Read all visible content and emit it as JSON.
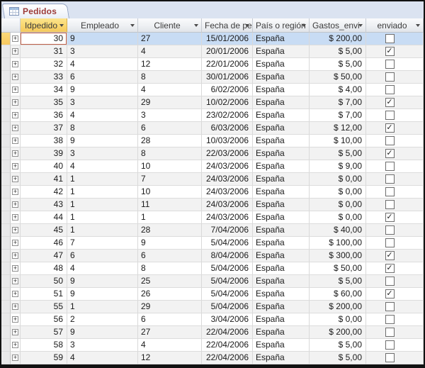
{
  "tab": {
    "title": "Pedidos"
  },
  "table": {
    "columns": [
      {
        "key": "id",
        "label": "Idpedido"
      },
      {
        "key": "empleado",
        "label": "Empleado"
      },
      {
        "key": "cliente",
        "label": "Cliente"
      },
      {
        "key": "fecha",
        "label": "Fecha de pe"
      },
      {
        "key": "pais",
        "label": "País o región"
      },
      {
        "key": "gastos",
        "label": "Gastos_envi"
      },
      {
        "key": "enviado",
        "label": "enviado"
      }
    ],
    "selected_row_id": 30,
    "rows": [
      {
        "id": 30,
        "empleado": 9,
        "cliente": 27,
        "fecha": "15/01/2006",
        "pais": "España",
        "gastos": "$ 200,00",
        "enviado": false,
        "selected": true
      },
      {
        "id": 31,
        "empleado": 3,
        "cliente": 4,
        "fecha": "20/01/2006",
        "pais": "España",
        "gastos": "$ 5,00",
        "enviado": true
      },
      {
        "id": 32,
        "empleado": 4,
        "cliente": 12,
        "fecha": "22/01/2006",
        "pais": "España",
        "gastos": "$ 5,00",
        "enviado": false
      },
      {
        "id": 33,
        "empleado": 6,
        "cliente": 8,
        "fecha": "30/01/2006",
        "pais": "España",
        "gastos": "$ 50,00",
        "enviado": false
      },
      {
        "id": 34,
        "empleado": 9,
        "cliente": 4,
        "fecha": "6/02/2006",
        "pais": "España",
        "gastos": "$ 4,00",
        "enviado": false
      },
      {
        "id": 35,
        "empleado": 3,
        "cliente": 29,
        "fecha": "10/02/2006",
        "pais": "España",
        "gastos": "$ 7,00",
        "enviado": true
      },
      {
        "id": 36,
        "empleado": 4,
        "cliente": 3,
        "fecha": "23/02/2006",
        "pais": "España",
        "gastos": "$ 7,00",
        "enviado": false
      },
      {
        "id": 37,
        "empleado": 8,
        "cliente": 6,
        "fecha": "6/03/2006",
        "pais": "España",
        "gastos": "$ 12,00",
        "enviado": true
      },
      {
        "id": 38,
        "empleado": 9,
        "cliente": 28,
        "fecha": "10/03/2006",
        "pais": "España",
        "gastos": "$ 10,00",
        "enviado": false
      },
      {
        "id": 39,
        "empleado": 3,
        "cliente": 8,
        "fecha": "22/03/2006",
        "pais": "España",
        "gastos": "$ 5,00",
        "enviado": true
      },
      {
        "id": 40,
        "empleado": 4,
        "cliente": 10,
        "fecha": "24/03/2006",
        "pais": "España",
        "gastos": "$ 9,00",
        "enviado": false
      },
      {
        "id": 41,
        "empleado": 1,
        "cliente": 7,
        "fecha": "24/03/2006",
        "pais": "España",
        "gastos": "$ 0,00",
        "enviado": false
      },
      {
        "id": 42,
        "empleado": 1,
        "cliente": 10,
        "fecha": "24/03/2006",
        "pais": "España",
        "gastos": "$ 0,00",
        "enviado": false
      },
      {
        "id": 43,
        "empleado": 1,
        "cliente": 11,
        "fecha": "24/03/2006",
        "pais": "España",
        "gastos": "$ 0,00",
        "enviado": false
      },
      {
        "id": 44,
        "empleado": 1,
        "cliente": 1,
        "fecha": "24/03/2006",
        "pais": "España",
        "gastos": "$ 0,00",
        "enviado": true
      },
      {
        "id": 45,
        "empleado": 1,
        "cliente": 28,
        "fecha": "7/04/2006",
        "pais": "España",
        "gastos": "$ 40,00",
        "enviado": false
      },
      {
        "id": 46,
        "empleado": 7,
        "cliente": 9,
        "fecha": "5/04/2006",
        "pais": "España",
        "gastos": "$ 100,00",
        "enviado": false
      },
      {
        "id": 47,
        "empleado": 6,
        "cliente": 6,
        "fecha": "8/04/2006",
        "pais": "España",
        "gastos": "$ 300,00",
        "enviado": true
      },
      {
        "id": 48,
        "empleado": 4,
        "cliente": 8,
        "fecha": "5/04/2006",
        "pais": "España",
        "gastos": "$ 50,00",
        "enviado": true
      },
      {
        "id": 50,
        "empleado": 9,
        "cliente": 25,
        "fecha": "5/04/2006",
        "pais": "España",
        "gastos": "$ 5,00",
        "enviado": false
      },
      {
        "id": 51,
        "empleado": 9,
        "cliente": 26,
        "fecha": "5/04/2006",
        "pais": "España",
        "gastos": "$ 60,00",
        "enviado": true
      },
      {
        "id": 55,
        "empleado": 1,
        "cliente": 29,
        "fecha": "5/04/2006",
        "pais": "España",
        "gastos": "$ 200,00",
        "enviado": false
      },
      {
        "id": 56,
        "empleado": 2,
        "cliente": 6,
        "fecha": "3/04/2006",
        "pais": "España",
        "gastos": "$ 0,00",
        "enviado": false
      },
      {
        "id": 57,
        "empleado": 9,
        "cliente": 27,
        "fecha": "22/04/2006",
        "pais": "España",
        "gastos": "$ 200,00",
        "enviado": false
      },
      {
        "id": 58,
        "empleado": 3,
        "cliente": 4,
        "fecha": "22/04/2006",
        "pais": "España",
        "gastos": "$ 5,00",
        "enviado": false
      },
      {
        "id": 59,
        "empleado": 4,
        "cliente": 12,
        "fecha": "22/04/2006",
        "pais": "España",
        "gastos": "$ 5,00",
        "enviado": false
      }
    ]
  },
  "colors": {
    "tabbar_bg": "#dbe3f1",
    "tab_text": "#9c3a38",
    "header_highlight": "#f9d76e",
    "selected_row": "#c8dcf4",
    "active_cell_border": "#c0614b",
    "alt_row": "#f2f2f2"
  }
}
